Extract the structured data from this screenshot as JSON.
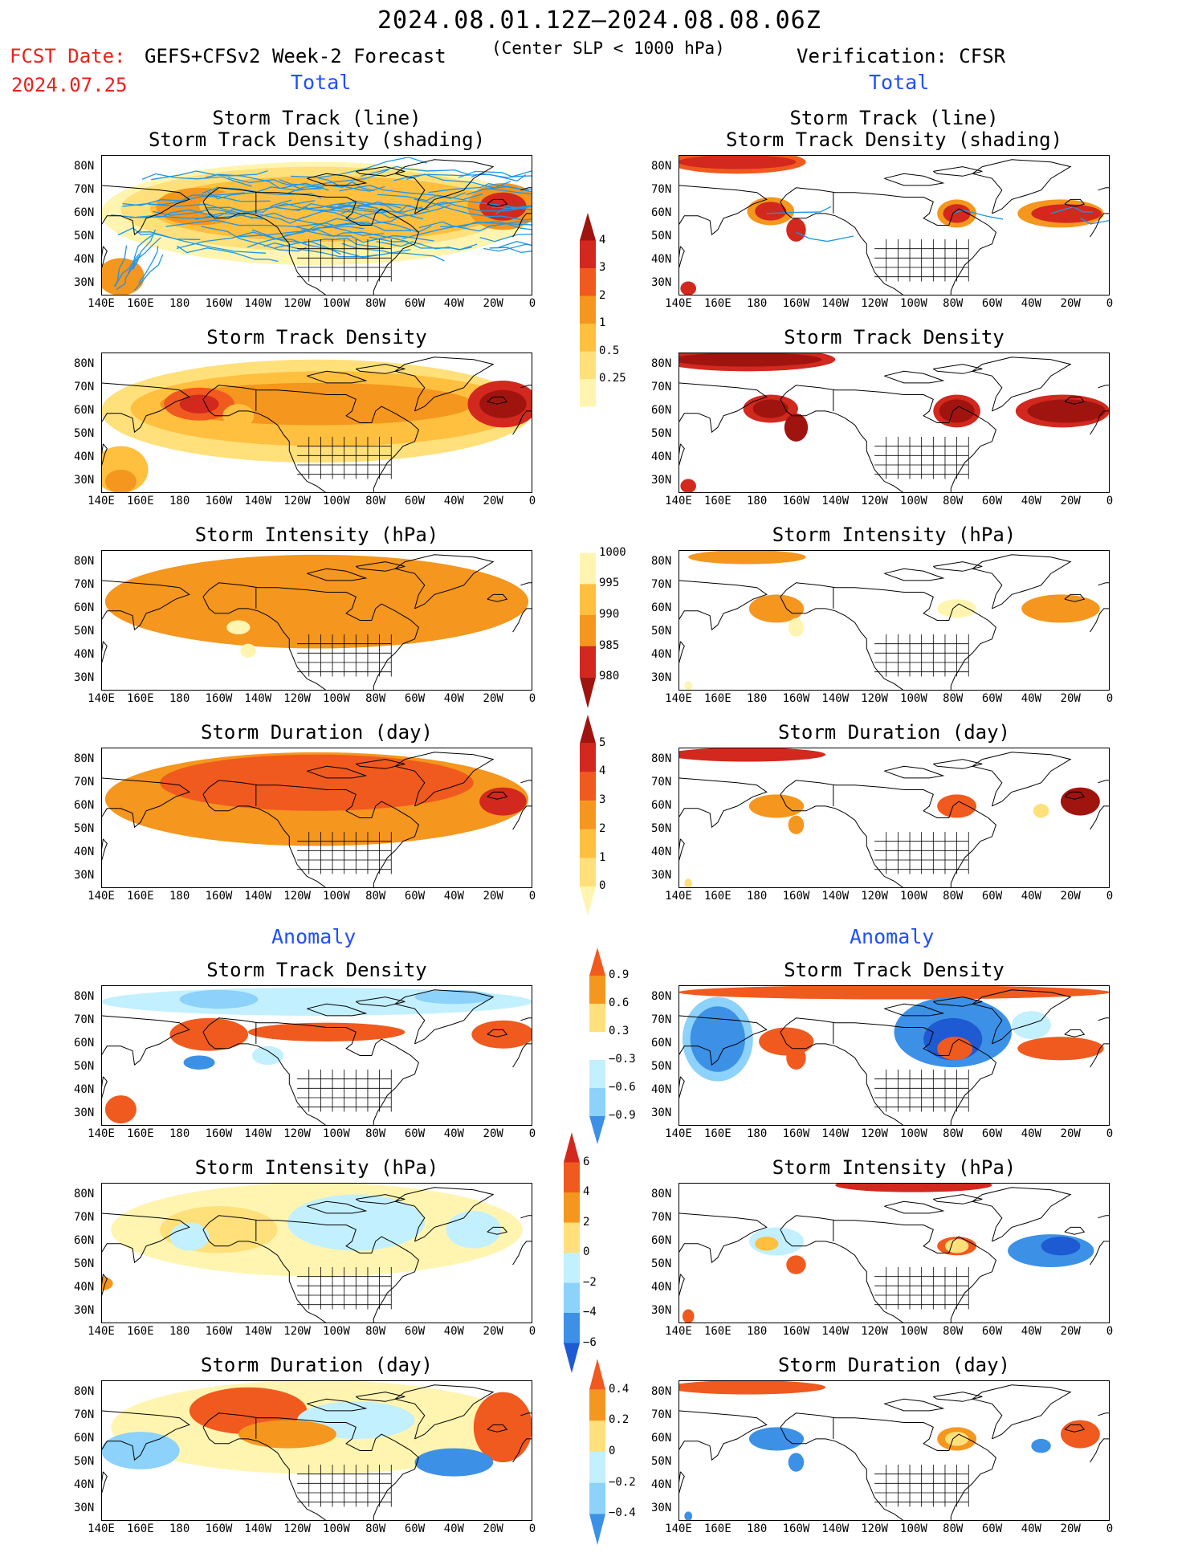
{
  "header": {
    "date_range": "2024.08.01.12Z–2024.08.08.06Z",
    "fcst_label": "FCST Date:",
    "fcst_date": "2024.07.25",
    "model": "GEFS+CFSv2 Week-2 Forecast",
    "criterion": "(Center SLP < 1000 hPa)",
    "verification": "Verification: CFSR"
  },
  "sections": {
    "total_left": "Total",
    "total_right": "Total",
    "anomaly_left": "Anomaly",
    "anomaly_right": "Anomaly"
  },
  "panel_titles": {
    "track_line": "Storm Track (line)",
    "track_shading": "Storm Track Density (shading)",
    "density": "Storm Track Density",
    "intensity": "Storm Intensity (hPa)",
    "duration": "Storm Duration (day)"
  },
  "axes": {
    "lon_labels": [
      "140E",
      "160E",
      "180",
      "160W",
      "140W",
      "120W",
      "100W",
      "80W",
      "60W",
      "40W",
      "20W",
      "0"
    ],
    "lat_labels": [
      "80N",
      "70N",
      "60N",
      "50N",
      "40N",
      "30N"
    ]
  },
  "colorbars": {
    "density_total": [
      "4",
      "3",
      "2",
      "1",
      "0.5",
      "0.25"
    ],
    "intensity_total": [
      "1000",
      "995",
      "990",
      "985",
      "980"
    ],
    "duration_total": [
      "5",
      "4",
      "3",
      "2",
      "1",
      "0"
    ],
    "density_anom": [
      "0.9",
      "0.6",
      "0.3",
      "−0.3",
      "−0.6",
      "−0.9"
    ],
    "intensity_anom": [
      "6",
      "4",
      "2",
      "0",
      "−2",
      "−4",
      "−6"
    ],
    "duration_anom": [
      "0.4",
      "0.2",
      "0",
      "−0.2",
      "−0.4"
    ]
  },
  "colors": {
    "yellow_light": "#fff5b0",
    "yellow": "#ffe07a",
    "orange_light": "#ffbf3f",
    "orange": "#f5961e",
    "red_orange": "#f05a1e",
    "red": "#d2281e",
    "dark_red": "#a0140f",
    "blue_light": "#c3f0ff",
    "blue_mid": "#8cd2fa",
    "blue": "#3c91e6",
    "blue_dark": "#1e5ad2",
    "track_line": "#1e96e6",
    "title_red": "#e8231b",
    "section_blue": "#1f4fff"
  }
}
